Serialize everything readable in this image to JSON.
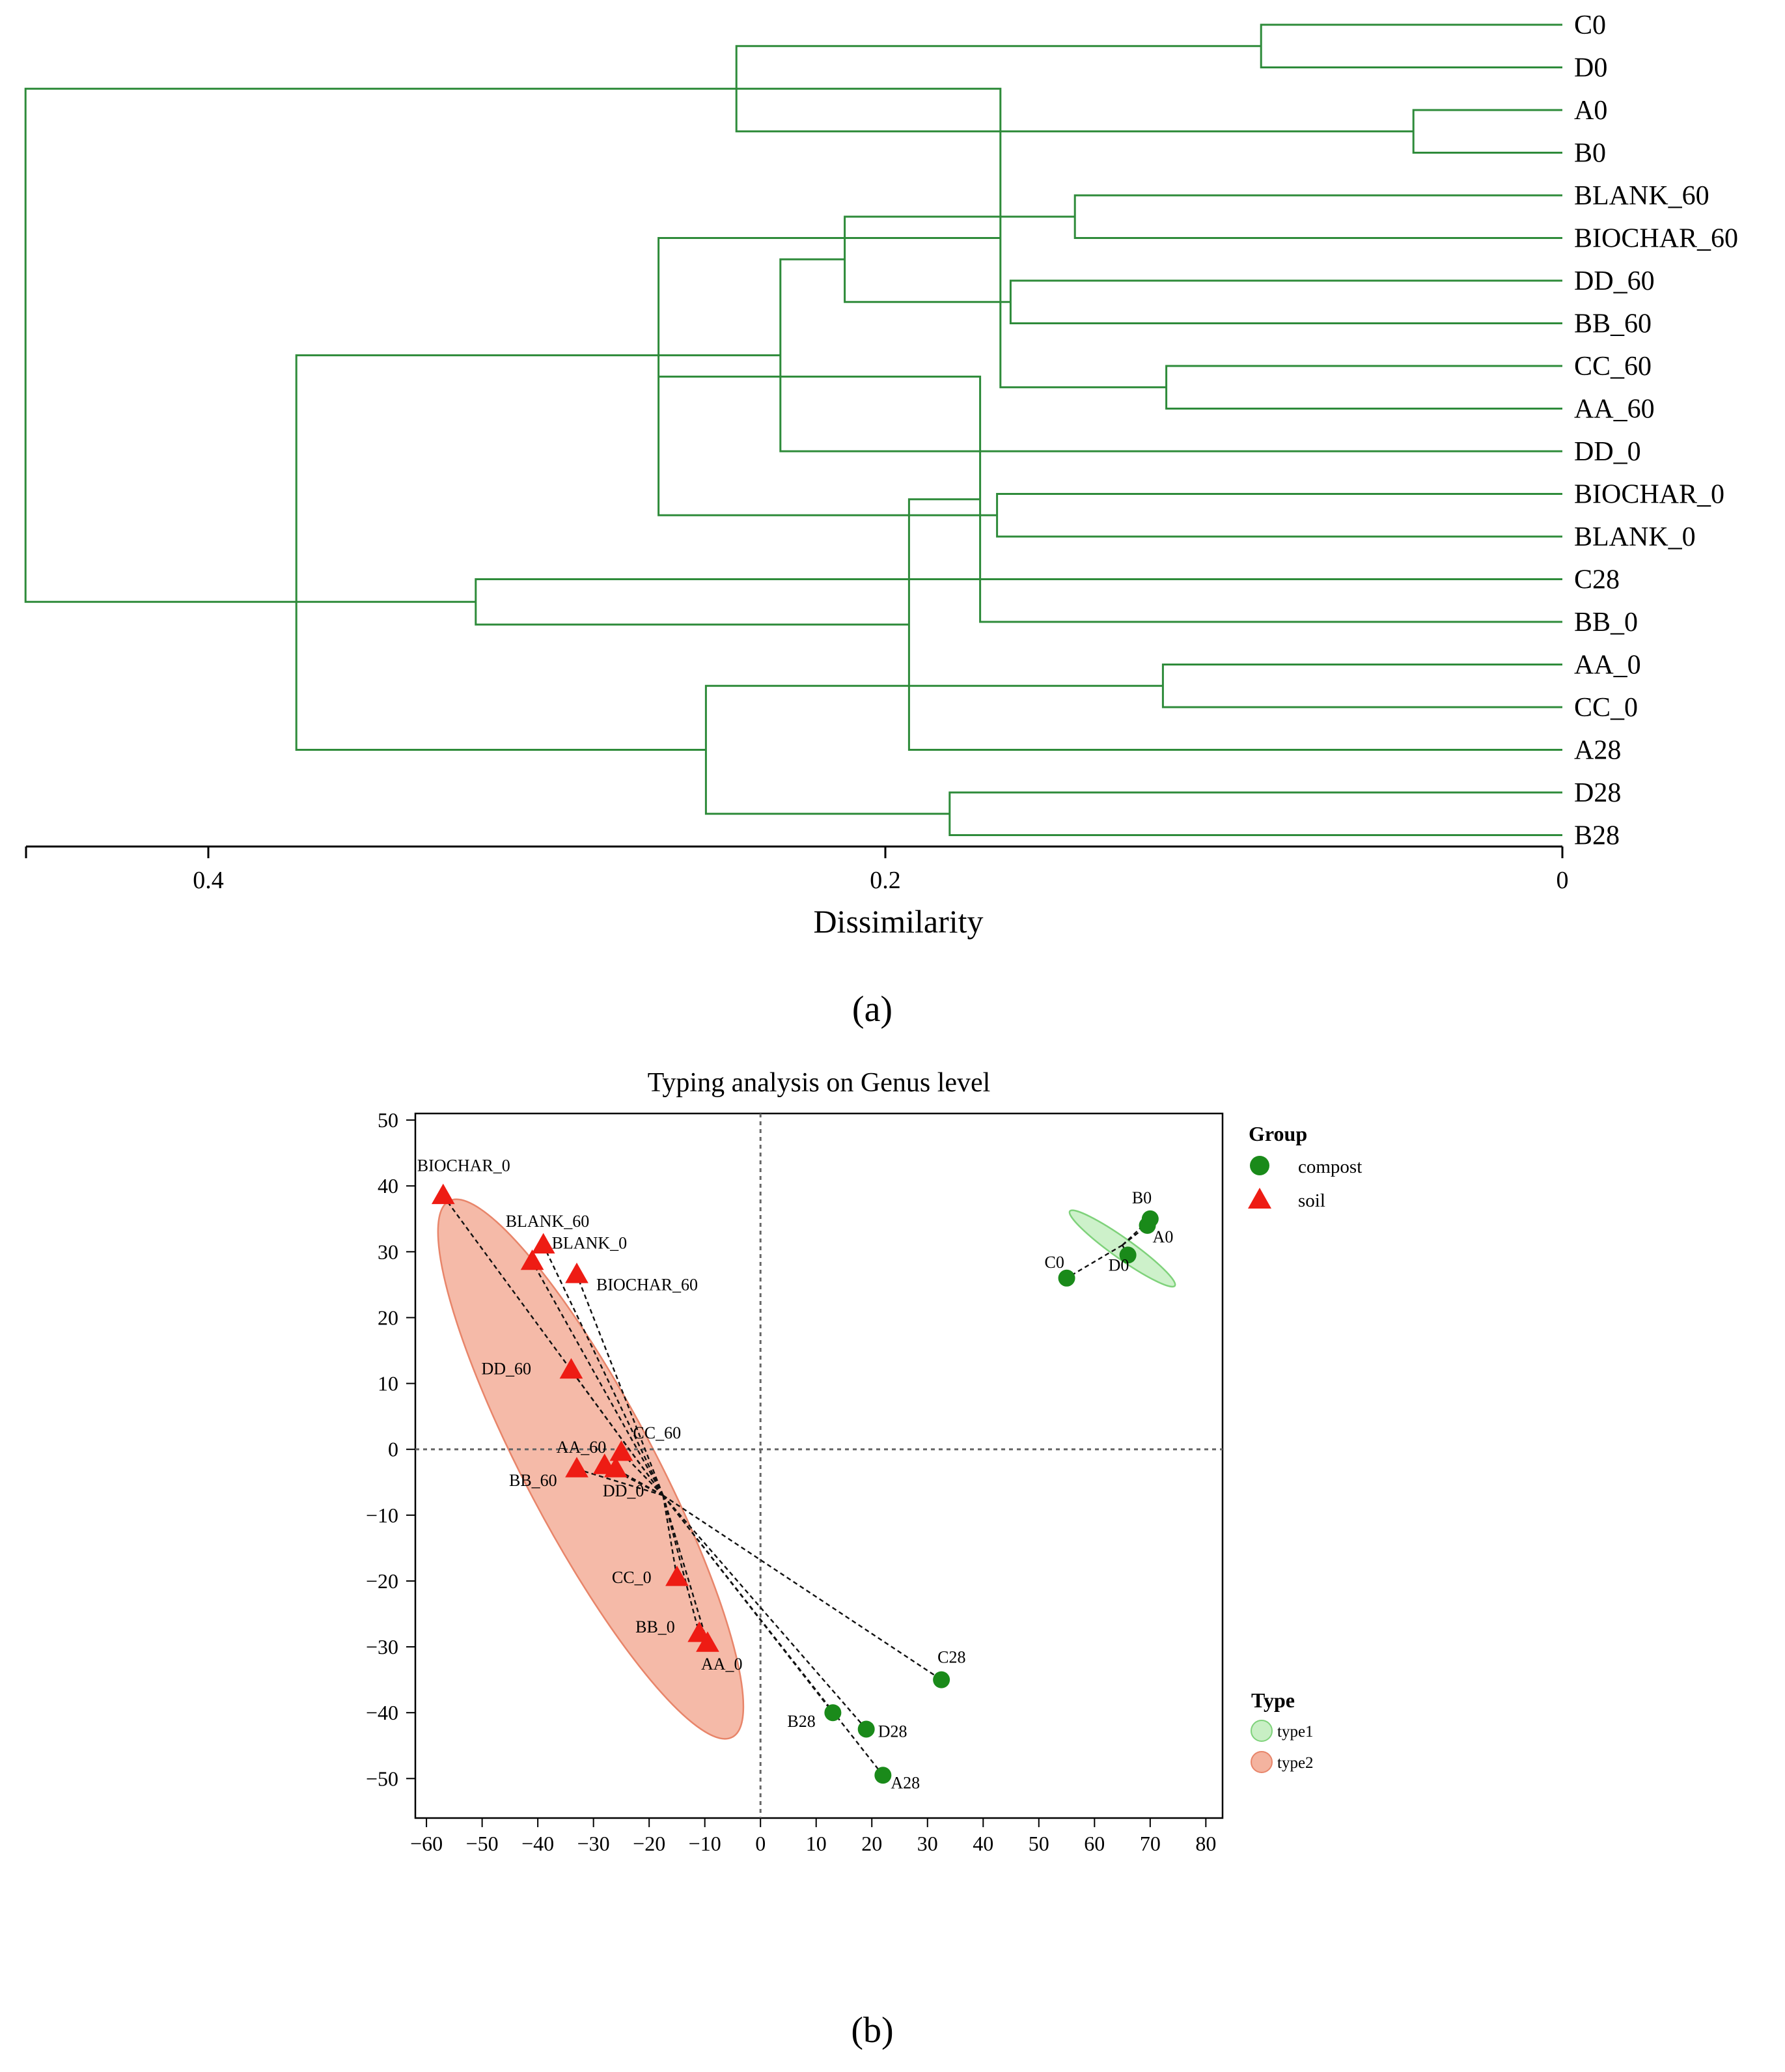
{
  "dendrogram": {
    "leaves": [
      "C0",
      "D0",
      "A0",
      "B0",
      "BLANK_60",
      "BIOCHAR_60",
      "DD_60",
      "BB_60",
      "CC_60",
      "AA_60",
      "DD_0",
      "BIOCHAR_0",
      "BLANK_0",
      "C28",
      "BB_0",
      "AA_0",
      "CC_0",
      "A28",
      "D28",
      "B28"
    ],
    "merges": [
      [
        2,
        3,
        0.044
      ],
      [
        0,
        1,
        0.089
      ],
      [
        -2,
        -1,
        0.244
      ],
      [
        8,
        9,
        0.117
      ],
      [
        6,
        7,
        0.163
      ],
      [
        4,
        5,
        0.144
      ],
      [
        -4,
        -3,
        0.166
      ],
      [
        -6,
        -5,
        0.212
      ],
      [
        11,
        12,
        0.167
      ],
      [
        10,
        -8,
        0.231
      ],
      [
        -7,
        -9,
        0.267
      ],
      [
        15,
        16,
        0.118
      ],
      [
        14,
        -11,
        0.172
      ],
      [
        18,
        19,
        0.181
      ],
      [
        17,
        -13,
        0.193
      ],
      [
        -12,
        -14,
        0.253
      ],
      [
        13,
        -15,
        0.321
      ],
      [
        -10,
        -16,
        0.374
      ],
      [
        -3,
        -17,
        0.454
      ]
    ],
    "axis": {
      "ticks": [
        0.4,
        0.2,
        0
      ],
      "tick_labels": [
        "0.4",
        "0.2",
        "0"
      ],
      "title": "Dissimilarity"
    },
    "colors": {
      "line": "#2e8b3a"
    }
  },
  "caption_a": "(a)",
  "caption_b": "(b)",
  "chart_data": {
    "type": "scatter",
    "title": "Typing analysis on Genus level",
    "xlim": [
      -62,
      83
    ],
    "ylim": [
      -56,
      51
    ],
    "x_ticks": [
      -60,
      -50,
      -40,
      -30,
      -20,
      -10,
      0,
      10,
      20,
      30,
      40,
      50,
      60,
      70,
      80
    ],
    "x_tick_labels": [
      "−60",
      "−50",
      "−40",
      "−30",
      "−20",
      "−10",
      "0",
      "10",
      "20",
      "30",
      "40",
      "50",
      "60",
      "70",
      "80"
    ],
    "y_ticks": [
      50,
      40,
      30,
      20,
      10,
      0,
      -10,
      -20,
      -30,
      -40,
      -50
    ],
    "y_tick_labels": [
      "50",
      "40",
      "30",
      "20",
      "10",
      "0",
      "−10",
      "−20",
      "−30",
      "−40",
      "−50"
    ],
    "points": [
      {
        "label": "BIOCHAR_0",
        "group": "soil",
        "x": -57,
        "y": 38.5
      },
      {
        "label": "BLANK_60",
        "group": "soil",
        "x": -39,
        "y": 31
      },
      {
        "label": "BLANK_0",
        "group": "soil",
        "x": -41,
        "y": 28.5
      },
      {
        "label": "BIOCHAR_60",
        "group": "soil",
        "x": -33,
        "y": 26.5
      },
      {
        "label": "DD_60",
        "group": "soil",
        "x": -34,
        "y": 12
      },
      {
        "label": "CC_60",
        "group": "soil",
        "x": -25,
        "y": -0.5
      },
      {
        "label": "AA_60",
        "group": "soil",
        "x": -28,
        "y": -2.5
      },
      {
        "label": "DD_0",
        "group": "soil",
        "x": -26,
        "y": -3
      },
      {
        "label": "BB_60",
        "group": "soil",
        "x": -33,
        "y": -3
      },
      {
        "label": "CC_0",
        "group": "soil",
        "x": -15,
        "y": -19.5
      },
      {
        "label": "BB_0",
        "group": "soil",
        "x": -11,
        "y": -28
      },
      {
        "label": "AA_0",
        "group": "soil",
        "x": -9.5,
        "y": -29.5
      },
      {
        "label": "B0",
        "group": "compost",
        "x": 70,
        "y": 35
      },
      {
        "label": "A0",
        "group": "compost",
        "x": 69.5,
        "y": 34
      },
      {
        "label": "D0",
        "group": "compost",
        "x": 66,
        "y": 29.5
      },
      {
        "label": "C0",
        "group": "compost",
        "x": 55,
        "y": 26
      },
      {
        "label": "C28",
        "group": "compost",
        "x": 32.5,
        "y": -35
      },
      {
        "label": "B28",
        "group": "compost",
        "x": 13,
        "y": -40
      },
      {
        "label": "D28",
        "group": "compost",
        "x": 19,
        "y": -42.5
      },
      {
        "label": "A28",
        "group": "compost",
        "x": 22,
        "y": -49.5
      }
    ],
    "centroids": {
      "type2": {
        "x": -17.5,
        "y": -7
      },
      "type1": {
        "x": 65,
        "y": 31
      }
    },
    "ellipses": [
      {
        "type": "type2",
        "cx": -30.5,
        "cy": -3,
        "rx": 48,
        "ry": 11,
        "angle": -58
      },
      {
        "type": "type1",
        "cx": 65,
        "cy": 30.5,
        "rx": 11,
        "ry": 1.6,
        "angle": -31
      }
    ],
    "legend": {
      "group_title": "Group",
      "groups": [
        {
          "name": "compost"
        },
        {
          "name": "soil"
        }
      ],
      "type_title": "Type",
      "types": [
        {
          "name": "type1"
        },
        {
          "name": "type2"
        }
      ]
    },
    "colors": {
      "compost": "#1a8a1a",
      "soil": "#ee1c14",
      "type1_fill": "#c8efc4",
      "type1_edge": "#7fd27b",
      "type2_fill": "#f4b39f",
      "type2_edge": "#e8856a"
    }
  }
}
